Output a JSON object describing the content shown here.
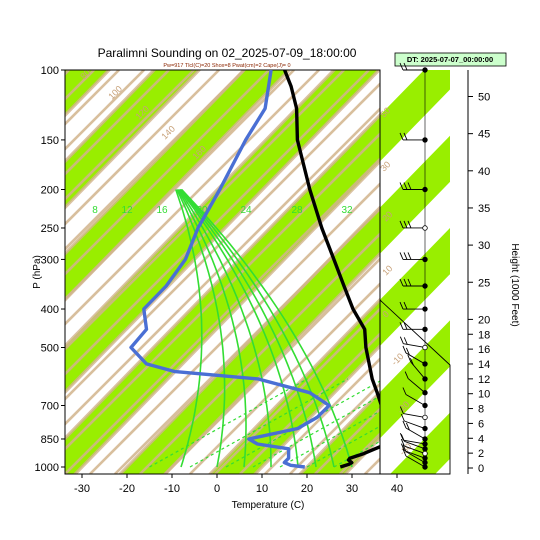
{
  "chart_data": {
    "type": "line",
    "title": "Paralimni Sounding on 02_2025-07-09_18:00:00",
    "subtitle": "Pw=917 Tlcl(C)=20 Shox=8 Pwat(cm)=2 Cape(J)= 0",
    "xlabel": "Temperature (C)",
    "ylabel": "P (hPa)",
    "y2label": "Height (1000 Feet)",
    "dt_label": "DT: 2025-07-07_00:00:00",
    "xlim": [
      -33,
      44
    ],
    "ylim": [
      1000,
      100
    ],
    "x_ticks": [
      "-30",
      "-20",
      "-10",
      "0",
      "10",
      "20",
      "30",
      "40"
    ],
    "y_ticks": [
      "100",
      "150",
      "200",
      "250",
      "300",
      "400",
      "500",
      "700",
      "850",
      "1000"
    ],
    "y2_ticks": [
      "50",
      "45",
      "40",
      "35",
      "30",
      "25",
      "20",
      "18",
      "16",
      "14",
      "12",
      "10",
      "8",
      "6",
      "4",
      "2",
      "0"
    ],
    "mixing_ratio_labels": [
      "8",
      "12",
      "16",
      "20",
      "24",
      "28",
      "32"
    ],
    "dry_adiabat_labels": [
      "80",
      "100",
      "120",
      "140",
      "160",
      "50",
      "30",
      "20",
      "10",
      "0",
      "-10",
      "-20",
      "-30"
    ],
    "colors": {
      "temperature": "#000000",
      "dewpoint": "#4a6fd4",
      "isotherm_band": "#99ee00",
      "dry_adiabat": "#d2b48c",
      "moist_adiabat": "#33dd33",
      "mixing_ratio": "#33dd33",
      "dt_box": "#ccffcc"
    },
    "series": [
      {
        "role": "temperature",
        "points": [
          [
            1000,
            27.4
          ],
          [
            985,
            28.7
          ],
          [
            975,
            29.0
          ],
          [
            960,
            27.7
          ],
          [
            950,
            27.6
          ],
          [
            925,
            29.7
          ],
          [
            900,
            31.2
          ],
          [
            875,
            32.7
          ],
          [
            850,
            33.2
          ],
          [
            825,
            31.0
          ],
          [
            800,
            30.5
          ],
          [
            750,
            27.0
          ],
          [
            700,
            23.2
          ],
          [
            650,
            19.5
          ],
          [
            600,
            15.4
          ],
          [
            550,
            11.5
          ],
          [
            500,
            7.2
          ],
          [
            450,
            3.0
          ],
          [
            400,
            -4.0
          ],
          [
            350,
            -11.0
          ],
          [
            300,
            -19.0
          ],
          [
            250,
            -28.5
          ],
          [
            200,
            -39.5
          ],
          [
            150,
            -53.0
          ],
          [
            125,
            -60.0
          ],
          [
            110,
            -66.0
          ],
          [
            100,
            -71.0
          ]
        ]
      },
      {
        "role": "dewpoint",
        "points": [
          [
            1000,
            19.5
          ],
          [
            990,
            16.0
          ],
          [
            975,
            14.0
          ],
          [
            950,
            14.0
          ],
          [
            925,
            13.0
          ],
          [
            900,
            12.0
          ],
          [
            875,
            4.0
          ],
          [
            850,
            1.0
          ],
          [
            800,
            9.6
          ],
          [
            750,
            11.5
          ],
          [
            700,
            11.6
          ],
          [
            650,
            4.5
          ],
          [
            600,
            -10.0
          ],
          [
            575,
            -30.0
          ],
          [
            550,
            -38.0
          ],
          [
            500,
            -45.0
          ],
          [
            450,
            -45.5
          ],
          [
            400,
            -50.5
          ],
          [
            350,
            -50.5
          ],
          [
            300,
            -52.0
          ],
          [
            250,
            -56.0
          ],
          [
            200,
            -59.5
          ],
          [
            150,
            -64.5
          ],
          [
            125,
            -67.0
          ],
          [
            100,
            -74.0
          ]
        ]
      }
    ],
    "wind_barbs": [
      {
        "p": 1000,
        "spd": 5,
        "dir": 300
      },
      {
        "p": 975,
        "spd": 5,
        "dir": 300
      },
      {
        "p": 950,
        "spd": 5,
        "dir": 290
      },
      {
        "p": 925,
        "spd": 10,
        "dir": 290
      },
      {
        "p": 900,
        "spd": 10,
        "dir": 290
      },
      {
        "p": 875,
        "spd": 10,
        "dir": 280
      },
      {
        "p": 850,
        "spd": 15,
        "dir": 300
      },
      {
        "p": 800,
        "spd": 10,
        "dir": 290
      },
      {
        "p": 750,
        "spd": 10,
        "dir": 280
      },
      {
        "p": 700,
        "spd": 10,
        "dir": 300
      },
      {
        "p": 650,
        "spd": 10,
        "dir": 310
      },
      {
        "p": 600,
        "spd": 15,
        "dir": 320
      },
      {
        "p": 550,
        "spd": 15,
        "dir": 300
      },
      {
        "p": 500,
        "spd": 15,
        "dir": 280
      },
      {
        "p": 450,
        "spd": 20,
        "dir": 270
      },
      {
        "p": 400,
        "spd": 20,
        "dir": 270
      },
      {
        "p": 350,
        "spd": 25,
        "dir": 270
      },
      {
        "p": 300,
        "spd": 25,
        "dir": 270
      },
      {
        "p": 250,
        "spd": 30,
        "dir": 270
      },
      {
        "p": 200,
        "spd": 30,
        "dir": 270
      },
      {
        "p": 150,
        "spd": 20,
        "dir": 270
      },
      {
        "p": 100,
        "spd": 15,
        "dir": 270
      }
    ]
  }
}
